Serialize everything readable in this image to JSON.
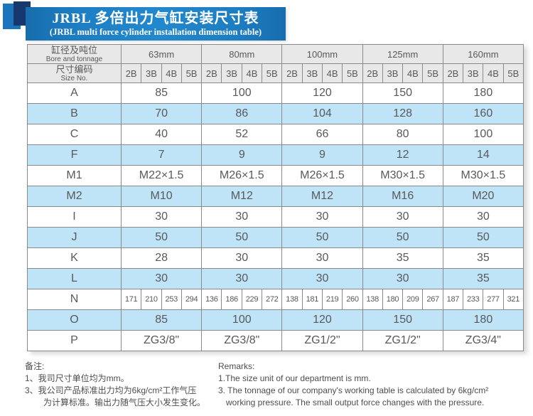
{
  "banner": {
    "title": "JRBL 多倍出力气缸安装尺寸表",
    "subtitle": "(JRBL multi force cylinder installation dimension table)"
  },
  "table": {
    "corner": {
      "zh": "缸径及吨位",
      "en": "Bore and tonnage"
    },
    "size_no": {
      "zh": "尺寸编码",
      "en": "Size No."
    },
    "bores": [
      "63mm",
      "80mm",
      "100mm",
      "125mm",
      "160mm"
    ],
    "size_codes": [
      "2B",
      "3B",
      "4B",
      "5B"
    ],
    "rows": [
      {
        "label": "A",
        "type": "span",
        "shaded": false,
        "values": [
          "85",
          "100",
          "120",
          "150",
          "180"
        ]
      },
      {
        "label": "B",
        "type": "span",
        "shaded": true,
        "values": [
          "70",
          "86",
          "104",
          "128",
          "160"
        ]
      },
      {
        "label": "C",
        "type": "span",
        "shaded": false,
        "values": [
          "40",
          "52",
          "66",
          "80",
          "100"
        ]
      },
      {
        "label": "F",
        "type": "span",
        "shaded": true,
        "values": [
          "7",
          "9",
          "9",
          "12",
          "14"
        ]
      },
      {
        "label": "M1",
        "type": "span",
        "shaded": false,
        "values": [
          "M22×1.5",
          "M26×1.5",
          "M26×1.5",
          "M30×1.5",
          "M30×1.5"
        ]
      },
      {
        "label": "M2",
        "type": "span",
        "shaded": true,
        "values": [
          "M10",
          "M12",
          "M12",
          "M16",
          "M20"
        ]
      },
      {
        "label": "I",
        "type": "span",
        "shaded": false,
        "values": [
          "30",
          "30",
          "30",
          "30",
          "30"
        ]
      },
      {
        "label": "J",
        "type": "span",
        "shaded": true,
        "values": [
          "50",
          "50",
          "50",
          "50",
          "50"
        ]
      },
      {
        "label": "K",
        "type": "span",
        "shaded": false,
        "values": [
          "28",
          "30",
          "30",
          "35",
          "35"
        ]
      },
      {
        "label": "L",
        "type": "span",
        "shaded": true,
        "values": [
          "30",
          "30",
          "30",
          "30",
          "35"
        ]
      },
      {
        "label": "N",
        "type": "per",
        "shaded": false,
        "values": [
          [
            "171",
            "210",
            "253",
            "294"
          ],
          [
            "136",
            "186",
            "229",
            "272"
          ],
          [
            "138",
            "181",
            "219",
            "260"
          ],
          [
            "138",
            "180",
            "209",
            "267"
          ],
          [
            "187",
            "233",
            "277",
            "321"
          ]
        ]
      },
      {
        "label": "O",
        "type": "span",
        "shaded": true,
        "values": [
          "85",
          "100",
          "120",
          "150",
          "180"
        ]
      },
      {
        "label": "P",
        "type": "span",
        "shaded": false,
        "values": [
          "ZG3/8\"",
          "ZG3/8\"",
          "ZG1/2\"",
          "ZG1/2\"",
          "ZG3/4\""
        ]
      }
    ]
  },
  "remarks_zh": {
    "title": "备注:",
    "lines": [
      {
        "text": "1、我司尺寸单位均为mm。",
        "indent": false
      },
      {
        "text": "3、我公司产品标准出力均为6kg/cm²工作气压",
        "indent": false
      },
      {
        "text": "为计算标准。输出力随气压大小发生变化。",
        "indent": true
      }
    ]
  },
  "remarks_en": {
    "title": "Remarks:",
    "lines": [
      {
        "text": "1.The size unit of our department is mm.",
        "indent": false
      },
      {
        "text": "3. The tonnage of our company's working table is calculated by 6kg/cm²",
        "indent": false
      },
      {
        "text": "working pressure. The small output force changes with the pressure.",
        "indent": true
      }
    ]
  },
  "colors": {
    "banner_blue": "#1d7dc2",
    "banner_blue_dark": "#176dad",
    "navy": "#16386d",
    "accent_blue": "#1c75bc",
    "row_blue": "#bfe4f8",
    "header_gray": "#e8e8e8",
    "grid": "#8a8a8a",
    "text": "#58595b"
  }
}
